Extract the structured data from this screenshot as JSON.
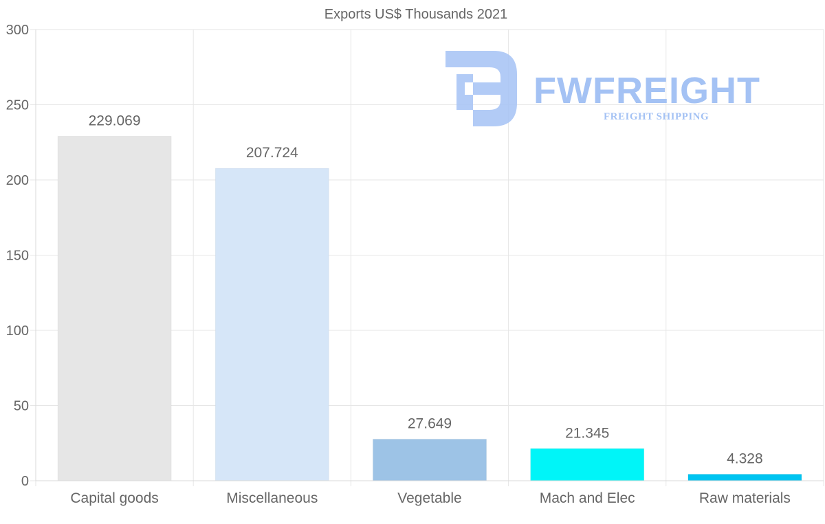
{
  "chart_data": {
    "type": "bar",
    "title": "Exports US$ Thousands 2021",
    "categories": [
      "Capital goods",
      "Miscellaneous",
      "Vegetable",
      "Mach and Elec",
      "Raw materials"
    ],
    "values": [
      229.069,
      207.724,
      27.649,
      21.345,
      4.328
    ],
    "value_labels": [
      "229.069",
      "207.724",
      "27.649",
      "21.345",
      "4.328"
    ],
    "colors": [
      "#e6e6e6",
      "#d6e6f8",
      "#9dc3e6",
      "#00f5f8",
      "#00c4f1"
    ],
    "ylim": [
      0,
      300
    ],
    "yticks": [
      0,
      50,
      100,
      150,
      200,
      250,
      300
    ],
    "grid": true,
    "xlabel": "",
    "ylabel": ""
  },
  "watermark": {
    "brand": "FWFREIGHT",
    "tagline": "FREIGHT SHIPPING",
    "color": "#a4c2f4"
  }
}
